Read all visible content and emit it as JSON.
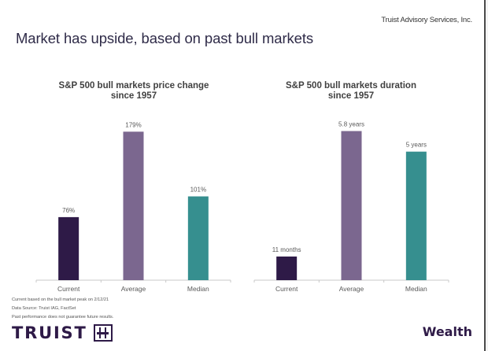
{
  "header": {
    "company": "Truist Advisory Services, Inc.",
    "title": "Market has upside, based on past bull markets"
  },
  "colors": {
    "current": "#2e1a47",
    "average": "#7b678f",
    "median": "#368f8f",
    "axis": "#c8c8c8",
    "label": "#595959"
  },
  "chart_data": [
    {
      "type": "bar",
      "title": "S&P 500 bull markets price change since 1957",
      "title_lines": [
        "S&P 500 bull markets price change",
        "since 1957"
      ],
      "categories": [
        "Current",
        "Average",
        "Median"
      ],
      "values": [
        76,
        179,
        101
      ],
      "data_labels": [
        "76%",
        "179%",
        "101%"
      ],
      "unit": "%",
      "xlabel": "",
      "ylabel": "",
      "ylim": [
        0,
        185
      ],
      "grid": false,
      "legend": "none"
    },
    {
      "type": "bar",
      "title": "S&P 500 bull markets duration since 1957",
      "title_lines": [
        "S&P 500 bull markets duration",
        "since 1957"
      ],
      "categories": [
        "Current",
        "Average",
        "Median"
      ],
      "values": [
        0.92,
        5.8,
        5.0
      ],
      "data_labels": [
        "11 months",
        "5.8 years",
        "5 years"
      ],
      "unit": "years",
      "xlabel": "",
      "ylabel": "",
      "ylim": [
        0,
        6.0
      ],
      "grid": false,
      "legend": "none"
    }
  ],
  "footnotes": [
    "Current based on the bull market peak on 2/12/21",
    "Data Source: Truist IAG, FactSet",
    "Past performance does not guarantee future results."
  ],
  "footer": {
    "logo_text": "TRUIST",
    "wealth": "Wealth"
  }
}
